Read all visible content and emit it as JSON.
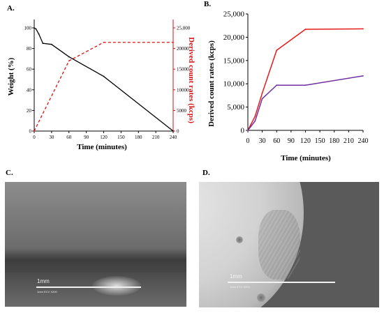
{
  "figure": {
    "panel_a_label": "A.",
    "panel_b_label": "B.",
    "panel_c_label": "C.",
    "panel_d_label": "D."
  },
  "chart_data": [
    {
      "type": "line",
      "panel": "A.",
      "xlabel": "Time (minutes)",
      "ylabel_left": "Weight (%)",
      "ylabel_right": "Derived count rates (kcps)",
      "xlim": [
        0,
        240
      ],
      "x_ticks": [
        0,
        30,
        60,
        90,
        120,
        150,
        180,
        210,
        240
      ],
      "ylim_left": [
        0,
        100
      ],
      "y_ticks_left": [
        0,
        20,
        40,
        60,
        80,
        100
      ],
      "ylim_right": [
        0,
        25000
      ],
      "y_ticks_right": [
        "0",
        "5000",
        "10000",
        "15000",
        "20000",
        "25,000"
      ],
      "grid": false,
      "series": [
        {
          "axis": "left",
          "color": "#000000",
          "style": "solid",
          "x": [
            0,
            3,
            8,
            15,
            30,
            60,
            120,
            240
          ],
          "y": [
            100,
            99,
            94,
            85,
            84,
            72,
            53,
            0
          ]
        },
        {
          "axis": "right",
          "color": "#dd1111",
          "style": "dashed",
          "x": [
            0,
            60,
            120,
            240
          ],
          "y": [
            0,
            17000,
            21500,
            21500
          ]
        }
      ]
    },
    {
      "type": "line",
      "panel": "B.",
      "xlabel": "Time (minutes)",
      "ylabel": "Derived count rates (kcps)",
      "xlim": [
        0,
        240
      ],
      "x_ticks": [
        0,
        30,
        60,
        90,
        120,
        150,
        180,
        210,
        240
      ],
      "ylim": [
        0,
        25000
      ],
      "y_ticks": [
        "0",
        "5,000",
        "10,000",
        "15,000",
        "20,000",
        "25,000"
      ],
      "grid": false,
      "series": [
        {
          "color": "#e8191b",
          "x": [
            0,
            15,
            30,
            60,
            120,
            240
          ],
          "y": [
            0,
            3000,
            8000,
            17200,
            21700,
            21800
          ]
        },
        {
          "color": "#7030a0",
          "x": [
            0,
            15,
            30,
            60,
            120,
            240
          ],
          "y": [
            0,
            2000,
            6800,
            9700,
            9700,
            11700
          ]
        }
      ]
    }
  ],
  "micrographs": [
    {
      "panel": "C.",
      "scale_label": "1mm",
      "caption_strip": "1mm  ECV  X200"
    },
    {
      "panel": "D.",
      "scale_label": "1mm",
      "caption_strip": "1mm  ECV  X200"
    }
  ]
}
